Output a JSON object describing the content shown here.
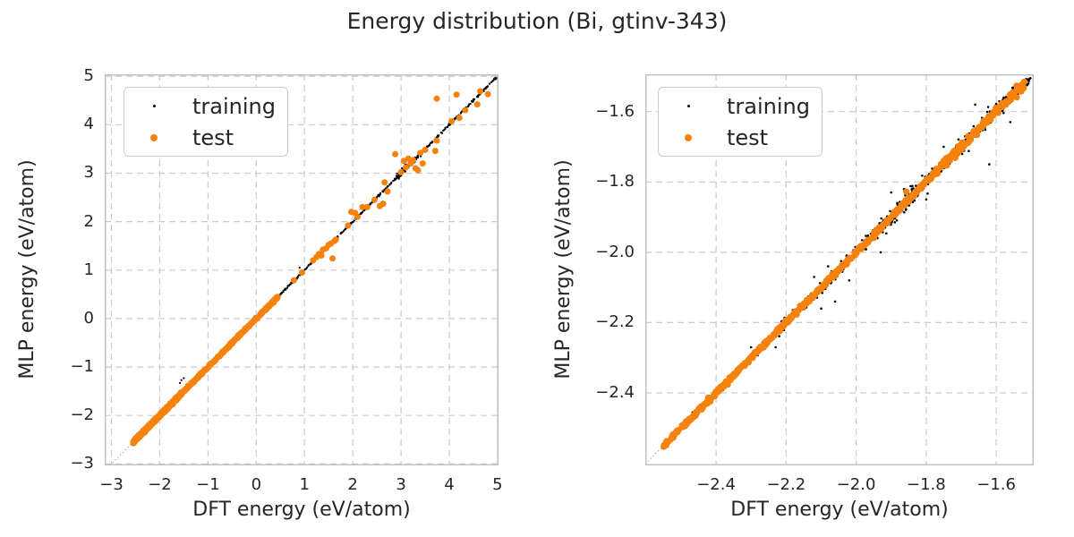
{
  "title": "Energy distribution (Bi, gtinv-343)",
  "colors": {
    "training": "#000000",
    "test": "#f5820d",
    "grid": "#cbcbcb",
    "spine": "#c2c2c2",
    "diagonal": "#a3a3a3",
    "text": "#262626",
    "background": "#ffffff"
  },
  "legend": {
    "position": "upper left",
    "items": [
      {
        "label": "training",
        "color": "#000000"
      },
      {
        "label": "test",
        "color": "#f5820d"
      }
    ]
  },
  "chart_data": [
    {
      "type": "scatter",
      "title": "",
      "xlabel": "DFT energy (eV/atom)",
      "ylabel": "MLP energy (eV/atom)",
      "xlim": [
        -3.14,
        5.02
      ],
      "ylim": [
        -3.03,
        5.04
      ],
      "grid": "dashed",
      "diagonal": true,
      "xticks": [
        {
          "v": -3,
          "label": "−3"
        },
        {
          "v": -2,
          "label": "−2"
        },
        {
          "v": -1,
          "label": "−1"
        },
        {
          "v": 0,
          "label": "0"
        },
        {
          "v": 1,
          "label": "1"
        },
        {
          "v": 2,
          "label": "2"
        },
        {
          "v": 3,
          "label": "3"
        },
        {
          "v": 4,
          "label": "4"
        },
        {
          "v": 5,
          "label": "5"
        }
      ],
      "yticks": [
        {
          "v": 5,
          "label": "5"
        },
        {
          "v": 4,
          "label": "4"
        },
        {
          "v": 3,
          "label": "3"
        },
        {
          "v": 2,
          "label": "2"
        },
        {
          "v": 1,
          "label": "1"
        },
        {
          "v": 0,
          "label": "0"
        },
        {
          "v": -1,
          "label": "−1"
        },
        {
          "v": -2,
          "label": "−2"
        },
        {
          "v": -3,
          "label": "−3"
        }
      ],
      "series": [
        {
          "name": "training",
          "color": "#000000",
          "r": 1.1,
          "seed": 7,
          "bands": [
            {
              "x0": -2.55,
              "x1": 0.55,
              "n": 600,
              "jitter": 0.005
            },
            {
              "x0": 0.55,
              "x1": 5.0,
              "n": 400,
              "jitter": 0.01
            },
            {
              "x0": 2.9,
              "x1": 3.45,
              "n": 60,
              "jitter": 0.035
            },
            {
              "x0": 1.25,
              "x1": 1.7,
              "n": 40,
              "jitter": 0.02
            }
          ],
          "points": [
            [
              -1.55,
              -1.27
            ],
            [
              -1.5,
              -1.23
            ],
            [
              -1.58,
              -1.33
            ],
            [
              0.9,
              1.05
            ],
            [
              2.05,
              2.2
            ]
          ]
        },
        {
          "name": "test",
          "color": "#f5820d",
          "r": 3.5,
          "seed": 13,
          "bands": [
            {
              "x0": -2.55,
              "x1": -1.55,
              "n": 400,
              "jitter": 0.014
            },
            {
              "x0": -1.55,
              "x1": 0.45,
              "n": 240,
              "jitter": 0.009
            }
          ],
          "points": [
            [
              0.78,
              0.79
            ],
            [
              0.95,
              0.95
            ],
            [
              1.18,
              1.2
            ],
            [
              1.25,
              1.27
            ],
            [
              1.3,
              1.33
            ],
            [
              1.35,
              1.3
            ],
            [
              1.38,
              1.42
            ],
            [
              1.45,
              1.45
            ],
            [
              1.5,
              1.52
            ],
            [
              1.55,
              1.55
            ],
            [
              1.58,
              1.24
            ],
            [
              1.62,
              1.6
            ],
            [
              1.65,
              1.63
            ],
            [
              1.9,
              1.92
            ],
            [
              1.97,
              2.2
            ],
            [
              2.05,
              2.18
            ],
            [
              2.1,
              2.1
            ],
            [
              2.2,
              2.3
            ],
            [
              2.3,
              2.3
            ],
            [
              2.45,
              2.45
            ],
            [
              2.56,
              2.32
            ],
            [
              2.63,
              2.37
            ],
            [
              2.66,
              2.81
            ],
            [
              2.72,
              2.62
            ],
            [
              2.88,
              3.39
            ],
            [
              3.0,
              3.02
            ],
            [
              3.06,
              3.25
            ],
            [
              3.1,
              3.12
            ],
            [
              3.15,
              3.3
            ],
            [
              3.2,
              3.2
            ],
            [
              3.25,
              3.27
            ],
            [
              3.3,
              3.1
            ],
            [
              3.35,
              3.06
            ],
            [
              3.4,
              3.42
            ],
            [
              3.45,
              3.2
            ],
            [
              3.5,
              3.48
            ],
            [
              3.71,
              3.46
            ],
            [
              3.74,
              3.67
            ],
            [
              3.74,
              4.54
            ],
            [
              4.05,
              4.07
            ],
            [
              4.15,
              4.62
            ],
            [
              4.21,
              4.14
            ],
            [
              4.33,
              4.3
            ],
            [
              4.58,
              4.42
            ],
            [
              4.64,
              4.69
            ],
            [
              4.8,
              4.63
            ]
          ]
        }
      ]
    },
    {
      "type": "scatter",
      "title": "",
      "xlabel": "DFT energy (eV/atom)",
      "ylabel": "MLP energy (eV/atom)",
      "xlim": [
        -2.602,
        -1.493
      ],
      "ylim": [
        -2.606,
        -1.494
      ],
      "grid": "dashed",
      "diagonal": true,
      "xticks": [
        {
          "v": -2.4,
          "label": "−2.4"
        },
        {
          "v": -2.2,
          "label": "−2.2"
        },
        {
          "v": -2.0,
          "label": "−2.0"
        },
        {
          "v": -1.8,
          "label": "−1.8"
        },
        {
          "v": -1.6,
          "label": "−1.6"
        }
      ],
      "yticks": [
        {
          "v": -1.6,
          "label": "−1.6"
        },
        {
          "v": -1.8,
          "label": "−1.8"
        },
        {
          "v": -2.0,
          "label": "−2.0"
        },
        {
          "v": -2.2,
          "label": "−2.2"
        },
        {
          "v": -2.4,
          "label": "−2.4"
        }
      ],
      "series": [
        {
          "name": "training",
          "color": "#000000",
          "r": 1.3,
          "seed": 21,
          "bands": [
            {
              "x0": -2.55,
              "x1": -2.22,
              "n": 350,
              "jitter": 0.004
            },
            {
              "x0": -2.22,
              "x1": -1.5,
              "n": 620,
              "jitter": 0.008
            },
            {
              "x0": -1.95,
              "x1": -1.78,
              "n": 70,
              "jitter": 0.016
            },
            {
              "x0": -1.72,
              "x1": -1.53,
              "n": 80,
              "jitter": 0.014
            }
          ],
          "points": [
            [
              -2.1,
              -2.16
            ],
            [
              -2.06,
              -2.14
            ],
            [
              -2.08,
              -2.04
            ],
            [
              -2.12,
              -2.07
            ],
            [
              -2.23,
              -2.27
            ],
            [
              -2.3,
              -2.27
            ],
            [
              -1.62,
              -1.75
            ],
            [
              -1.66,
              -1.58
            ],
            [
              -1.93,
              -2.0
            ],
            [
              -1.9,
              -1.83
            ],
            [
              -2.02,
              -2.08
            ],
            [
              -1.56,
              -1.63
            ],
            [
              -1.75,
              -1.7
            ],
            [
              -1.8,
              -1.85
            ]
          ]
        },
        {
          "name": "test",
          "color": "#f5820d",
          "r": 3.6,
          "seed": 29,
          "bands": [
            {
              "x0": -2.55,
              "x1": -1.78,
              "n": 520,
              "jitter": 0.0032
            },
            {
              "x0": -1.78,
              "x1": -1.52,
              "n": 140,
              "jitter": 0.006
            }
          ],
          "points": [
            [
              -1.857,
              -1.828
            ],
            [
              -1.75,
              -1.74
            ],
            [
              -1.68,
              -1.67
            ],
            [
              -1.6,
              -1.59
            ],
            [
              -1.55,
              -1.545
            ],
            [
              -1.52,
              -1.515
            ]
          ]
        }
      ]
    }
  ]
}
